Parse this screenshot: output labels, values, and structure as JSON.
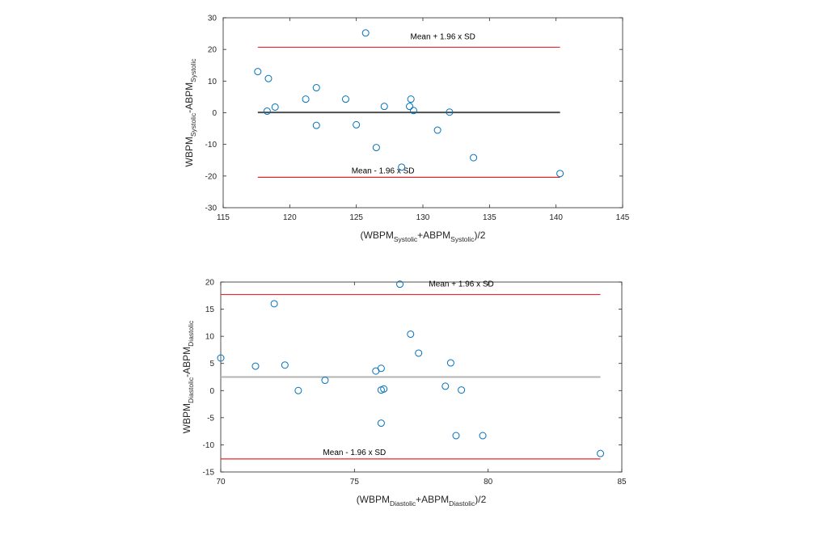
{
  "chart_data": [
    {
      "type": "scatter",
      "title": "",
      "xlabel": {
        "main": "(WBPM",
        "sub1": "Systolic",
        "mid": "+ABPM",
        "sub2": "Systolic",
        "end": ")/2"
      },
      "ylabel": {
        "main": "WBPM",
        "sub1": "Systolic",
        "mid": "-ABPM",
        "sub2": "Systolic",
        "end": ""
      },
      "xlim": [
        115,
        145
      ],
      "ylim": [
        -30,
        30
      ],
      "xticks": [
        115,
        120,
        125,
        130,
        135,
        140,
        145
      ],
      "yticks": [
        -30,
        -20,
        -10,
        0,
        10,
        20,
        30
      ],
      "points": {
        "x": [
          117.6,
          118.3,
          118.4,
          118.9,
          121.2,
          122.0,
          122.0,
          124.2,
          125.0,
          125.7,
          126.5,
          127.1,
          128.4,
          129.0,
          129.1,
          129.3,
          131.1,
          132.0,
          133.8,
          140.3
        ],
        "y": [
          13.0,
          0.5,
          10.8,
          1.8,
          4.3,
          7.9,
          -4.0,
          4.3,
          -3.8,
          25.2,
          -11.0,
          2.0,
          -17.2,
          2.0,
          4.3,
          0.7,
          -5.5,
          0.2,
          -14.2,
          -19.2
        ]
      },
      "mean_line": {
        "y": 0.1,
        "x": [
          117.6,
          140.3
        ],
        "color": "#4d4d4d"
      },
      "upper_loa": {
        "y": 20.7,
        "x": [
          117.6,
          140.3
        ],
        "color": "#e8262b",
        "label": "Mean + 1.96 x SD",
        "label_x": 131.5
      },
      "lower_loa": {
        "y": -20.4,
        "x": [
          117.6,
          140.3
        ],
        "color": "#e8262b",
        "label": "Mean - 1.96 x SD",
        "label_x": 127.0
      },
      "marker_color": "#0072BD",
      "grid": false
    },
    {
      "type": "scatter",
      "title": "",
      "xlabel": {
        "main": "(WBPM",
        "sub1": "Diastolic",
        "mid": "+ABPM",
        "sub2": "Diastolic",
        "end": ")/2"
      },
      "ylabel": {
        "main": "WBPM",
        "sub1": "Diastolic",
        "mid": "-ABPM",
        "sub2": "Diastolic",
        "end": ""
      },
      "xlim": [
        70,
        85
      ],
      "ylim": [
        -15,
        20
      ],
      "xticks": [
        70,
        75,
        80,
        85
      ],
      "yticks": [
        -15,
        -10,
        -5,
        0,
        5,
        10,
        15,
        20
      ],
      "points": {
        "x": [
          70.0,
          71.3,
          72.0,
          72.4,
          72.9,
          73.9,
          75.8,
          76.0,
          76.0,
          76.0,
          76.1,
          76.7,
          77.1,
          77.4,
          78.4,
          78.6,
          78.8,
          79.0,
          79.8,
          84.2
        ],
        "y": [
          6.0,
          4.5,
          16.0,
          4.7,
          0.0,
          1.9,
          3.6,
          4.1,
          0.1,
          -6.0,
          0.3,
          19.6,
          10.4,
          6.9,
          0.8,
          5.1,
          -8.3,
          0.1,
          -8.3,
          -11.6
        ]
      },
      "mean_line": {
        "y": 2.5,
        "x": [
          70.0,
          84.2
        ],
        "color": "#b3b3b3"
      },
      "upper_loa": {
        "y": 17.7,
        "x": [
          70.0,
          84.2
        ],
        "color": "#e8262b",
        "label": "Mean + 1.96 x SD",
        "label_x": 79.0
      },
      "lower_loa": {
        "y": -12.6,
        "x": [
          70.0,
          84.2
        ],
        "color": "#e8262b",
        "label": "Mean - 1.96 x SD",
        "label_x": 75.0
      },
      "marker_color": "#0072BD",
      "grid": false
    }
  ]
}
